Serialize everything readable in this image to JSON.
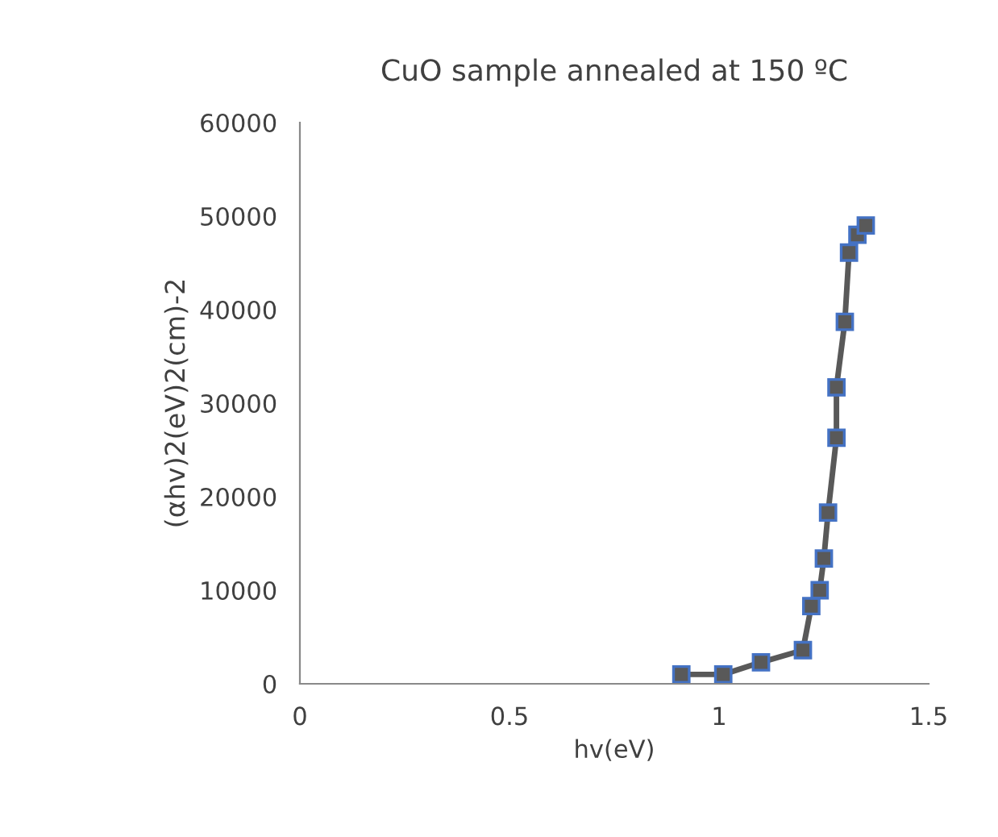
{
  "chart_data": {
    "type": "line",
    "title": "CuO sample annealed at 150 ºC",
    "xlabel": "hv(eV)",
    "ylabel": "(αhv)2(eV)2(cm)-2",
    "x": [
      0.91,
      1.01,
      1.1,
      1.2,
      1.22,
      1.24,
      1.25,
      1.26,
      1.28,
      1.28,
      1.3,
      1.31,
      1.33,
      1.35
    ],
    "series": [
      {
        "color": "#595959",
        "values": [
          1000,
          1000,
          2300,
          3600,
          8300,
          10000,
          13400,
          18300,
          26300,
          31700,
          38700,
          46100,
          48000,
          49000
        ]
      }
    ],
    "xlim": [
      0,
      1.5
    ],
    "xticks": [
      0,
      0.5,
      1,
      1.5
    ],
    "ylim": [
      0,
      60000
    ],
    "yticks": [
      0,
      10000,
      20000,
      30000,
      40000,
      50000,
      60000
    ],
    "marker": "square",
    "line_style": "solid",
    "grid": false,
    "legend": false
  }
}
